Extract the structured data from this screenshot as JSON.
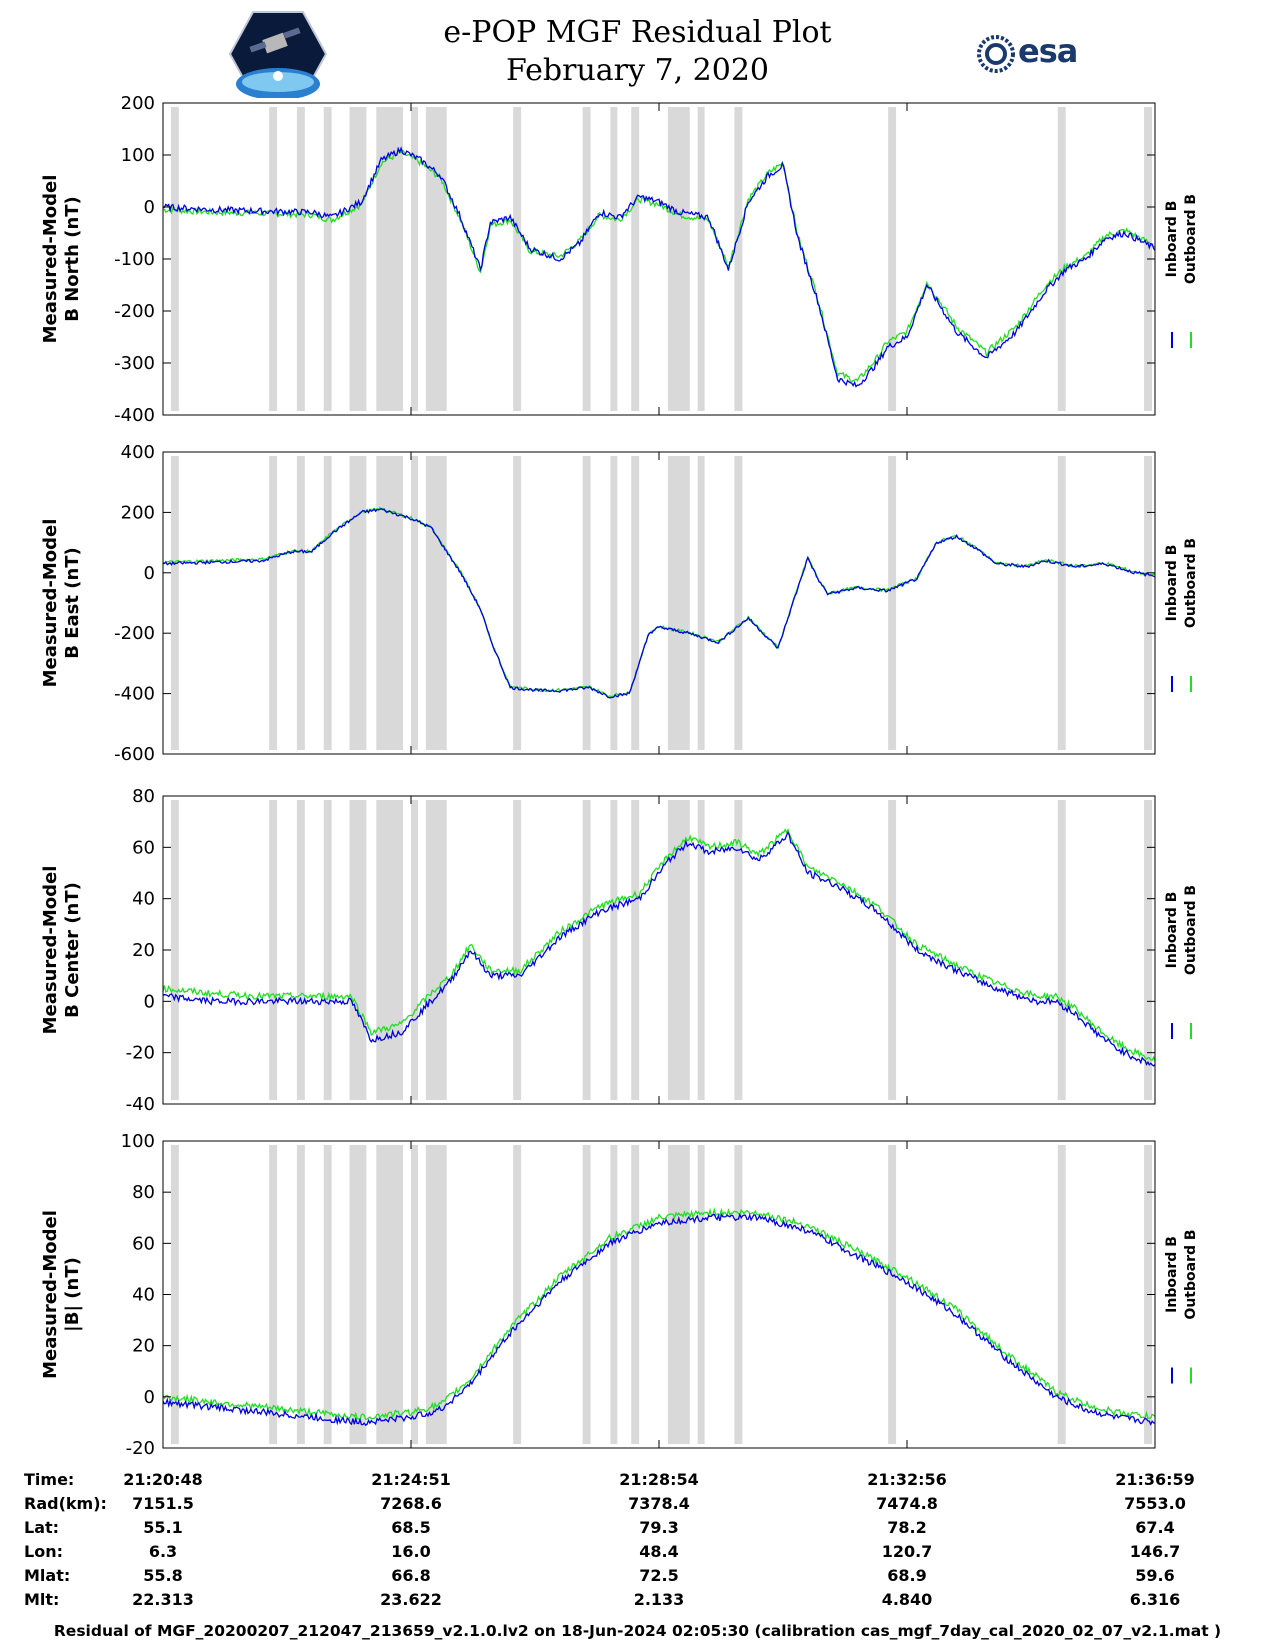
{
  "header": {
    "title_line1": "e-POP MGF Residual Plot",
    "title_line2": "February 7, 2020",
    "logo_left": "cassiope-mission-logo",
    "logo_right_text": "esa"
  },
  "colors": {
    "inboard": "#0000dd",
    "outboard": "#22dd22",
    "shade": "#d9d9d9"
  },
  "shaded_intervals": [
    [
      0.008,
      0.016
    ],
    [
      0.107,
      0.115
    ],
    [
      0.135,
      0.143
    ],
    [
      0.162,
      0.17
    ],
    [
      0.188,
      0.205
    ],
    [
      0.215,
      0.242
    ],
    [
      0.25,
      0.257
    ],
    [
      0.265,
      0.286
    ],
    [
      0.353,
      0.361
    ],
    [
      0.423,
      0.431
    ],
    [
      0.451,
      0.458
    ],
    [
      0.472,
      0.48
    ],
    [
      0.509,
      0.531
    ],
    [
      0.539,
      0.546
    ],
    [
      0.576,
      0.584
    ],
    [
      0.731,
      0.739
    ],
    [
      0.902,
      0.91
    ],
    [
      0.989,
      0.997
    ]
  ],
  "chart_data": [
    {
      "type": "line",
      "ylabel_line1": "Measured-Model",
      "ylabel_line2": "B North (nT)",
      "ylim": [
        -400,
        200
      ],
      "yticks": [
        200,
        100,
        0,
        -100,
        -200,
        -300,
        -400
      ],
      "legend": [
        "Inboard B",
        "Outboard B"
      ],
      "grid": false,
      "series": [
        {
          "name": "Inboard B",
          "x": [
            0,
            0.05,
            0.1,
            0.15,
            0.17,
            0.2,
            0.22,
            0.24,
            0.26,
            0.28,
            0.3,
            0.32,
            0.33,
            0.35,
            0.37,
            0.4,
            0.42,
            0.44,
            0.46,
            0.48,
            0.5,
            0.52,
            0.55,
            0.57,
            0.59,
            0.61,
            0.625,
            0.64,
            0.66,
            0.68,
            0.7,
            0.72,
            0.73,
            0.75,
            0.77,
            0.8,
            0.83,
            0.86,
            0.89,
            0.91,
            0.93,
            0.95,
            0.97,
            1.0
          ],
          "y": [
            0,
            -5,
            -8,
            -10,
            -20,
            10,
            90,
            110,
            90,
            60,
            -20,
            -120,
            -30,
            -20,
            -80,
            -100,
            -70,
            -10,
            -20,
            20,
            10,
            -10,
            -20,
            -120,
            10,
            60,
            80,
            -60,
            -180,
            -330,
            -345,
            -300,
            -270,
            -250,
            -150,
            -240,
            -290,
            -240,
            -160,
            -120,
            -100,
            -60,
            -50,
            -80
          ]
        },
        {
          "name": "Outboard B",
          "x": [
            0,
            0.05,
            0.1,
            0.15,
            0.17,
            0.2,
            0.22,
            0.24,
            0.26,
            0.28,
            0.3,
            0.32,
            0.33,
            0.35,
            0.37,
            0.4,
            0.42,
            0.44,
            0.46,
            0.48,
            0.5,
            0.52,
            0.55,
            0.57,
            0.59,
            0.61,
            0.625,
            0.64,
            0.66,
            0.68,
            0.7,
            0.72,
            0.73,
            0.75,
            0.77,
            0.8,
            0.83,
            0.86,
            0.89,
            0.91,
            0.93,
            0.95,
            0.97,
            1.0
          ],
          "y": [
            -5,
            -10,
            -12,
            -15,
            -25,
            5,
            85,
            105,
            85,
            55,
            -25,
            -125,
            -35,
            -25,
            -85,
            -95,
            -65,
            -15,
            -25,
            15,
            5,
            -15,
            -25,
            -115,
            15,
            65,
            85,
            -55,
            -175,
            -320,
            -335,
            -290,
            -260,
            -240,
            -145,
            -230,
            -280,
            -230,
            -150,
            -115,
            -95,
            -55,
            -45,
            -75
          ]
        }
      ]
    },
    {
      "type": "line",
      "ylabel_line1": "Measured-Model",
      "ylabel_line2": "B East (nT)",
      "ylim": [
        -600,
        400
      ],
      "yticks": [
        400,
        200,
        0,
        -200,
        -400,
        -600
      ],
      "legend": [
        "Inboard B",
        "Outboard B"
      ],
      "grid": false,
      "series": [
        {
          "name": "Inboard B",
          "x": [
            0,
            0.05,
            0.1,
            0.13,
            0.15,
            0.17,
            0.2,
            0.22,
            0.25,
            0.27,
            0.3,
            0.32,
            0.33,
            0.35,
            0.38,
            0.4,
            0.43,
            0.45,
            0.47,
            0.49,
            0.5,
            0.53,
            0.56,
            0.59,
            0.62,
            0.65,
            0.66,
            0.67,
            0.7,
            0.73,
            0.76,
            0.78,
            0.8,
            0.82,
            0.84,
            0.87,
            0.89,
            0.92,
            0.95,
            0.98,
            1.0
          ],
          "y": [
            30,
            35,
            40,
            70,
            70,
            130,
            200,
            210,
            180,
            150,
            0,
            -120,
            -220,
            -380,
            -390,
            -390,
            -380,
            -410,
            -400,
            -200,
            -180,
            -200,
            -230,
            -150,
            -250,
            50,
            -20,
            -70,
            -50,
            -60,
            -20,
            100,
            120,
            80,
            30,
            20,
            40,
            20,
            30,
            0,
            -10
          ]
        },
        {
          "name": "Outboard B",
          "x": [
            0,
            0.05,
            0.1,
            0.13,
            0.15,
            0.17,
            0.2,
            0.22,
            0.25,
            0.27,
            0.3,
            0.32,
            0.33,
            0.35,
            0.38,
            0.4,
            0.43,
            0.45,
            0.47,
            0.49,
            0.5,
            0.53,
            0.56,
            0.59,
            0.62,
            0.65,
            0.66,
            0.67,
            0.7,
            0.73,
            0.76,
            0.78,
            0.8,
            0.82,
            0.84,
            0.87,
            0.89,
            0.92,
            0.95,
            0.98,
            1.0
          ],
          "y": [
            35,
            40,
            45,
            72,
            72,
            132,
            202,
            212,
            182,
            152,
            2,
            -118,
            -218,
            -378,
            -388,
            -388,
            -378,
            -408,
            -398,
            -198,
            -178,
            -198,
            -228,
            -148,
            -248,
            52,
            -18,
            -68,
            -48,
            -58,
            -18,
            102,
            122,
            82,
            32,
            22,
            42,
            22,
            32,
            2,
            -8
          ]
        }
      ]
    },
    {
      "type": "line",
      "ylabel_line1": "Measured-Model",
      "ylabel_line2": "B Center (nT)",
      "ylim": [
        -40,
        80
      ],
      "yticks": [
        80,
        60,
        40,
        20,
        0,
        -20,
        -40
      ],
      "legend": [
        "Inboard B",
        "Outboard B"
      ],
      "grid": false,
      "series": [
        {
          "name": "Inboard B",
          "x": [
            0,
            0.05,
            0.1,
            0.15,
            0.19,
            0.21,
            0.24,
            0.27,
            0.29,
            0.31,
            0.33,
            0.36,
            0.4,
            0.44,
            0.48,
            0.51,
            0.53,
            0.55,
            0.58,
            0.6,
            0.63,
            0.65,
            0.68,
            0.72,
            0.76,
            0.8,
            0.84,
            0.88,
            0.9,
            0.92,
            0.94,
            0.96,
            0.98,
            1.0
          ],
          "y": [
            2,
            0,
            0,
            0,
            0,
            -15,
            -12,
            0,
            8,
            20,
            10,
            10,
            25,
            35,
            40,
            55,
            62,
            58,
            60,
            55,
            65,
            50,
            45,
            35,
            20,
            12,
            5,
            0,
            0,
            -5,
            -12,
            -18,
            -22,
            -25
          ]
        },
        {
          "name": "Outboard B",
          "x": [
            0,
            0.05,
            0.1,
            0.15,
            0.19,
            0.21,
            0.24,
            0.27,
            0.29,
            0.31,
            0.33,
            0.36,
            0.4,
            0.44,
            0.48,
            0.51,
            0.53,
            0.55,
            0.58,
            0.6,
            0.63,
            0.65,
            0.68,
            0.72,
            0.76,
            0.8,
            0.84,
            0.88,
            0.9,
            0.92,
            0.94,
            0.96,
            0.98,
            1.0
          ],
          "y": [
            5,
            3,
            2,
            2,
            2,
            -12,
            -9,
            3,
            10,
            22,
            12,
            12,
            27,
            37,
            42,
            57,
            64,
            60,
            62,
            57,
            67,
            52,
            47,
            37,
            22,
            14,
            7,
            2,
            2,
            -3,
            -10,
            -16,
            -20,
            -23
          ]
        }
      ]
    },
    {
      "type": "line",
      "ylabel_line1": "Measured-Model",
      "ylabel_line2": "|B| (nT)",
      "ylim": [
        -20,
        100
      ],
      "yticks": [
        100,
        80,
        60,
        40,
        20,
        0,
        -20
      ],
      "legend": [
        "Inboard B",
        "Outboard B"
      ],
      "grid": false,
      "series": [
        {
          "name": "Inboard B",
          "x": [
            0,
            0.05,
            0.1,
            0.15,
            0.2,
            0.25,
            0.28,
            0.31,
            0.35,
            0.4,
            0.45,
            0.5,
            0.55,
            0.6,
            0.65,
            0.7,
            0.75,
            0.8,
            0.85,
            0.9,
            0.93,
            0.96,
            1.0
          ],
          "y": [
            -2,
            -4,
            -6,
            -8,
            -10,
            -8,
            -5,
            5,
            25,
            45,
            60,
            68,
            70,
            70,
            65,
            55,
            45,
            32,
            15,
            0,
            -5,
            -8,
            -10
          ]
        },
        {
          "name": "Outboard B",
          "x": [
            0,
            0.05,
            0.1,
            0.15,
            0.2,
            0.25,
            0.28,
            0.31,
            0.35,
            0.4,
            0.45,
            0.5,
            0.55,
            0.6,
            0.65,
            0.7,
            0.75,
            0.8,
            0.85,
            0.9,
            0.93,
            0.96,
            1.0
          ],
          "y": [
            0,
            -2,
            -4,
            -6,
            -8,
            -6,
            -3,
            7,
            27,
            47,
            62,
            70,
            72,
            72,
            67,
            57,
            47,
            34,
            17,
            2,
            -3,
            -6,
            -8
          ]
        }
      ]
    }
  ],
  "info_table": {
    "labels": [
      "Time:",
      "Rad(km):",
      "Lat:",
      "Lon:",
      "Mlat:",
      "Mlt:"
    ],
    "columns": [
      [
        "21:20:48",
        "7151.5",
        "55.1",
        "6.3",
        "55.8",
        "22.313"
      ],
      [
        "21:24:51",
        "7268.6",
        "68.5",
        "16.0",
        "66.8",
        "23.622"
      ],
      [
        "21:28:54",
        "7378.4",
        "79.3",
        "48.4",
        "72.5",
        "2.133"
      ],
      [
        "21:32:56",
        "7474.8",
        "78.2",
        "120.7",
        "68.9",
        "4.840"
      ],
      [
        "21:36:59",
        "7553.0",
        "67.4",
        "146.7",
        "59.6",
        "6.316"
      ]
    ]
  },
  "footer": "Residual of MGF_20200207_212047_213659_v2.1.0.lv2 on 18-Jun-2024 02:05:30 (calibration cas_mgf_7day_cal_2020_02_07_v2.1.mat )"
}
